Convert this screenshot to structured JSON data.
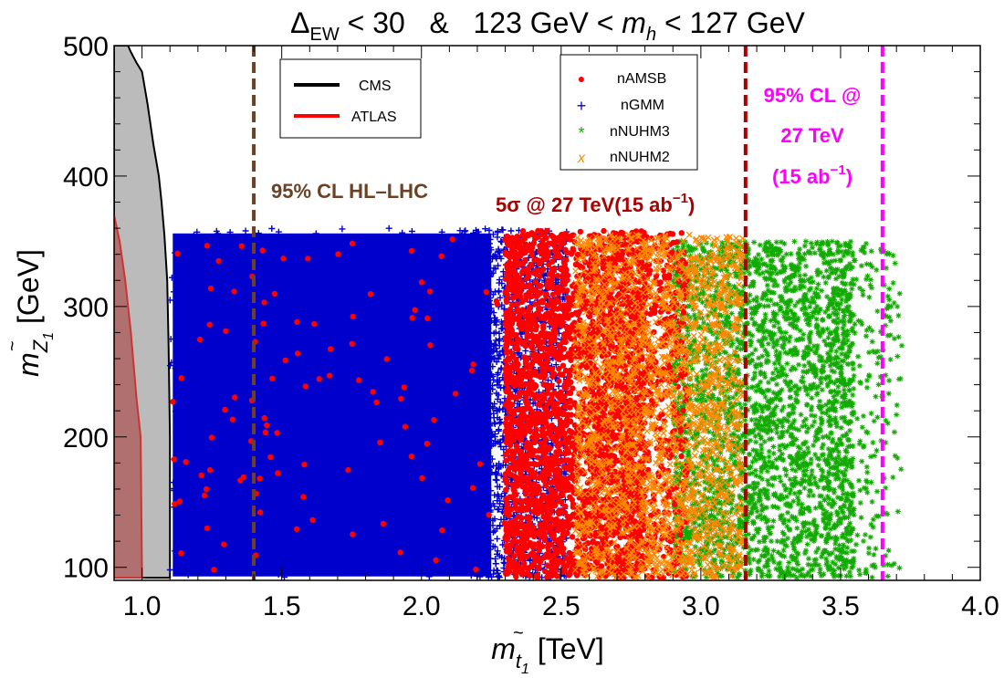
{
  "chart_data": {
    "type": "scatter",
    "title_parts": {
      "delta": "Δ",
      "ew": "EW",
      "lt30": " < 30   &   123 GeV < ",
      "m": "m",
      "h": "h",
      "tail": " < 127 GeV"
    },
    "xlabel": {
      "m": "m",
      "sub": "t",
      "sub2": "1",
      "tilde": "~",
      "unit": " [TeV]"
    },
    "ylabel": {
      "m": "m",
      "sub": "Z",
      "sub2": "1",
      "tilde": "~",
      "unit": " [GeV]"
    },
    "xlim": [
      0.9,
      4.0
    ],
    "ylim": [
      90,
      500
    ],
    "x_ticks": [
      "1.0",
      "1.5",
      "2.0",
      "2.5",
      "3.0",
      "3.5",
      "4.0"
    ],
    "x_tick_values": [
      1.0,
      1.5,
      2.0,
      2.5,
      3.0,
      3.5,
      4.0
    ],
    "y_ticks": [
      "100",
      "200",
      "300",
      "400",
      "500"
    ],
    "y_tick_values": [
      100,
      200,
      300,
      400,
      500
    ],
    "series": [
      {
        "name": "nAMSB",
        "marker": "●",
        "color": "#ff0000",
        "x_range": [
          1.1,
          3.0
        ],
        "y_range": [
          92,
          358
        ]
      },
      {
        "name": "nGMM",
        "marker": "+",
        "color": "#0000cc",
        "x_range": [
          1.1,
          2.52
        ],
        "y_range": [
          92,
          360
        ]
      },
      {
        "name": "nNUHM3",
        "marker": "*",
        "color": "#11aa00",
        "x_range": [
          2.6,
          3.72
        ],
        "y_range": [
          92,
          350
        ]
      },
      {
        "name": "nNUHM2",
        "marker": "x",
        "color": "#ff8800",
        "x_range": [
          2.4,
          3.15
        ],
        "y_range": [
          92,
          355
        ]
      }
    ],
    "exclusion_legend": [
      {
        "name": "CMS",
        "color": "#000000"
      },
      {
        "name": "ATLAS",
        "color": "#ff0000"
      }
    ],
    "exclusion_regions": {
      "cms": {
        "fill": "#bbbbbb",
        "edge": "#000000",
        "boundary": [
          [
            0.9,
            500
          ],
          [
            0.95,
            500
          ],
          [
            0.96,
            495
          ],
          [
            0.98,
            487
          ],
          [
            1.0,
            480
          ],
          [
            1.02,
            455
          ],
          [
            1.04,
            425
          ],
          [
            1.06,
            400
          ],
          [
            1.07,
            380
          ],
          [
            1.08,
            355
          ],
          [
            1.09,
            320
          ],
          [
            1.095,
            270
          ],
          [
            1.1,
            200
          ],
          [
            1.1,
            92
          ],
          [
            0.9,
            92
          ]
        ]
      },
      "atlas": {
        "fill": "#b07070",
        "edge": "#cc3333",
        "boundary": [
          [
            0.9,
            92
          ],
          [
            0.9,
            370
          ],
          [
            0.92,
            350
          ],
          [
            0.94,
            320
          ],
          [
            0.96,
            280
          ],
          [
            0.98,
            230
          ],
          [
            0.995,
            200
          ],
          [
            1.0,
            92
          ]
        ]
      }
    },
    "vertical_lines": [
      {
        "x": 1.4,
        "color": "#6b4226",
        "label": "95% CL HL–LHC"
      },
      {
        "x": 3.16,
        "color": "#aa0000",
        "label_main": "5σ @ 27 TeV(15 ab",
        "label_sup": "−1",
        "label_end": ")"
      },
      {
        "x": 3.65,
        "color": "#ff00ff",
        "label_lines": [
          "95% CL @",
          "27 TeV"
        ],
        "label_last": "(15 ab",
        "label_last_sup": "−1",
        "label_last_end": ")"
      }
    ],
    "grid": false,
    "legend_placement": "top"
  }
}
